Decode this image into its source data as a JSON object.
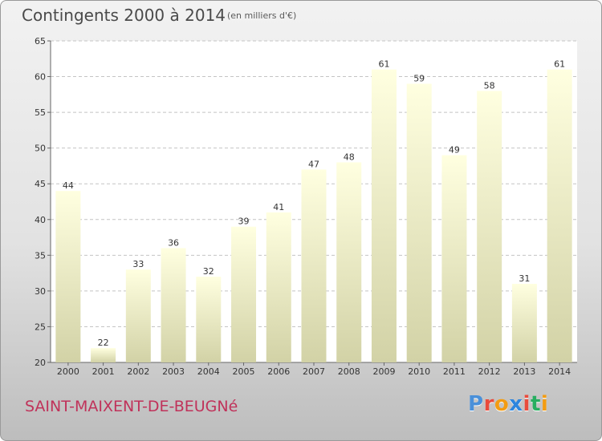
{
  "title": "Contingents 2000 à 2014",
  "subtitle": "(en milliers d'€)",
  "commune": "SAINT-MAIXENT-DE-BEUGNé",
  "logo": {
    "text": "Proxiti",
    "letters": [
      {
        "ch": "P",
        "color": "#4a90d9"
      },
      {
        "ch": "r",
        "color": "#e94b3c"
      },
      {
        "ch": "o",
        "color": "#f39c12"
      },
      {
        "ch": "x",
        "color": "#2e86de"
      },
      {
        "ch": "i",
        "color": "#e94b3c"
      },
      {
        "ch": "t",
        "color": "#27ae60"
      },
      {
        "ch": "i",
        "color": "#f39c12"
      }
    ]
  },
  "colors": {
    "bar_top": "#ffffe0",
    "bar_bottom": "#d2d2a6",
    "grid": "#c4c4c4",
    "axis_text": "#333333",
    "plot_bg": "#ffffff"
  },
  "chart_data": {
    "type": "bar",
    "categories": [
      "2000",
      "2001",
      "2002",
      "2003",
      "2004",
      "2005",
      "2006",
      "2007",
      "2008",
      "2009",
      "2010",
      "2011",
      "2012",
      "2013",
      "2014"
    ],
    "values": [
      44,
      22,
      33,
      36,
      32,
      39,
      41,
      47,
      48,
      61,
      59,
      49,
      58,
      31,
      61
    ],
    "ylim": [
      20,
      65
    ],
    "yticks": [
      20,
      25,
      30,
      35,
      40,
      45,
      50,
      55,
      60,
      65
    ],
    "grid": true,
    "title": "Contingents 2000 à 2014",
    "xlabel": "",
    "ylabel": ""
  }
}
